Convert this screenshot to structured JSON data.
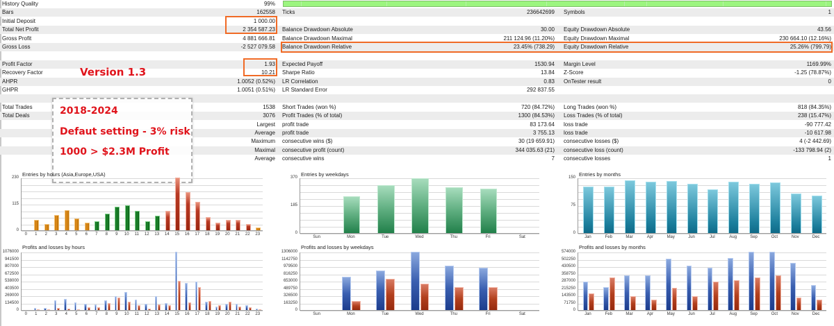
{
  "stats": {
    "col1": [
      {
        "label": "History Quality",
        "value": "99%"
      },
      {
        "label": "Bars",
        "value": "162558"
      },
      {
        "label": "Initial Deposit",
        "value": "1 000.00"
      },
      {
        "label": "Total Net Profit",
        "value": "2 354 587.23"
      },
      {
        "label": "Gross Profit",
        "value": "4 881 666.81"
      },
      {
        "label": "Gross Loss",
        "value": "-2 527 079.58"
      },
      {
        "label": "",
        "value": ""
      },
      {
        "label": "Profit Factor",
        "value": "1.93"
      },
      {
        "label": "Recovery Factor",
        "value": "10.21"
      },
      {
        "label": "AHPR",
        "value": "1.0052 (0.52%)"
      },
      {
        "label": "GHPR",
        "value": "1.0051 (0.51%)"
      },
      {
        "label": "",
        "value": ""
      },
      {
        "label": "Total Trades",
        "value": "1538"
      },
      {
        "label": "Total Deals",
        "value": "3076"
      },
      {
        "label": "",
        "value": "Largest"
      },
      {
        "label": "",
        "value": "Average"
      },
      {
        "label": "",
        "value": "Maximum"
      },
      {
        "label": "",
        "value": "Maximal"
      },
      {
        "label": "",
        "value": "Average"
      }
    ],
    "col2": [
      {
        "label": "",
        "value": ""
      },
      {
        "label": "Ticks",
        "value": "236642699"
      },
      {
        "label": "",
        "value": ""
      },
      {
        "label": "Balance Drawdown Absolute",
        "value": "30.00"
      },
      {
        "label": "Balance Drawdown Maximal",
        "value": "211 124.96 (11.20%)"
      },
      {
        "label": "Balance Drawdown Relative",
        "value": "23.45% (738.29)"
      },
      {
        "label": "",
        "value": ""
      },
      {
        "label": "Expected Payoff",
        "value": "1530.94"
      },
      {
        "label": "Sharpe Ratio",
        "value": "13.84"
      },
      {
        "label": "LR Correlation",
        "value": "0.83"
      },
      {
        "label": "LR Standard Error",
        "value": "292 837.55"
      },
      {
        "label": "",
        "value": ""
      },
      {
        "label": "Short Trades (won %)",
        "value": "720 (84.72%)"
      },
      {
        "label": "Profit Trades (% of total)",
        "value": "1300 (84.53%)"
      },
      {
        "label": "profit trade",
        "value": "83 173.64"
      },
      {
        "label": "profit trade",
        "value": "3 755.13"
      },
      {
        "label": "consecutive wins ($)",
        "value": "30 (19 659.91)"
      },
      {
        "label": "consecutive profit (count)",
        "value": "344 035.63 (21)"
      },
      {
        "label": "consecutive wins",
        "value": "7"
      }
    ],
    "col3": [
      {
        "label": "",
        "value": ""
      },
      {
        "label": "Symbols",
        "value": "1"
      },
      {
        "label": "",
        "value": ""
      },
      {
        "label": "Equity Drawdown Absolute",
        "value": "43.56"
      },
      {
        "label": "Equity Drawdown Maximal",
        "value": "230 664.10 (12.16%)"
      },
      {
        "label": "Equity Drawdown Relative",
        "value": "25.26% (799.79)"
      },
      {
        "label": "",
        "value": ""
      },
      {
        "label": "Margin Level",
        "value": "1169.99%"
      },
      {
        "label": "Z-Score",
        "value": "-1.25 (78.87%)"
      },
      {
        "label": "OnTester result",
        "value": "0"
      },
      {
        "label": "",
        "value": ""
      },
      {
        "label": "",
        "value": ""
      },
      {
        "label": "Long Trades (won %)",
        "value": "818 (84.35%)"
      },
      {
        "label": "Loss Trades (% of total)",
        "value": "238 (15.47%)"
      },
      {
        "label": "loss trade",
        "value": "-90 777.42"
      },
      {
        "label": "loss trade",
        "value": "-10 617.98"
      },
      {
        "label": "consecutive losses ($)",
        "value": "4 (-2 442.69)"
      },
      {
        "label": "consecutive loss (count)",
        "value": "-133 798.94 (2)"
      },
      {
        "label": "consecutive losses",
        "value": "1"
      }
    ]
  },
  "annotations": {
    "version": "Version 1.3",
    "period": "2018-2024",
    "setting": "Defaut setting - 3% risk",
    "result": "1000 > $2.3M Profit"
  },
  "colors": {
    "highlight": "#f06a25",
    "annotation_red": "#e0141c",
    "quality_bar": "#9cf57f",
    "profit_blue": "#3a5fb0",
    "loss_red": "#b2401e"
  },
  "chart_data": [
    {
      "id": "entries_hours",
      "type": "bar",
      "title": "Entries by hours (Asia,Europe,USA)",
      "categories": [
        "0",
        "1",
        "2",
        "3",
        "4",
        "5",
        "6",
        "7",
        "8",
        "9",
        "10",
        "11",
        "12",
        "13",
        "14",
        "15",
        "16",
        "17",
        "18",
        "19",
        "20",
        "21",
        "22",
        "23"
      ],
      "values": [
        0,
        45,
        28,
        68,
        88,
        52,
        34,
        40,
        72,
        102,
        108,
        84,
        40,
        64,
        86,
        230,
        166,
        123,
        58,
        34,
        46,
        44,
        26,
        12
      ],
      "session_colors": [
        "orange",
        "orange",
        "orange",
        "orange",
        "orange",
        "orange",
        "orange",
        "green",
        "green",
        "green",
        "green",
        "green",
        "green",
        "green",
        "red",
        "red",
        "red",
        "red",
        "red",
        "red",
        "red",
        "red",
        "red",
        "orange"
      ],
      "yticks": [
        "230",
        "115",
        "0"
      ],
      "ylim": [
        0,
        230
      ]
    },
    {
      "id": "entries_weekdays",
      "type": "bar",
      "title": "Entries by weekdays",
      "categories": [
        "Sun",
        "Mon",
        "Tue",
        "Wed",
        "Thu",
        "Fri",
        "Sat"
      ],
      "values": [
        0,
        246,
        318,
        366,
        305,
        298,
        0
      ],
      "yticks": [
        "370",
        "185",
        "0"
      ],
      "ylim": [
        0,
        370
      ]
    },
    {
      "id": "entries_months",
      "type": "bar",
      "title": "Entries by months",
      "categories": [
        "Jan",
        "Feb",
        "Mar",
        "Apr",
        "May",
        "Jun",
        "Jul",
        "Aug",
        "Sep",
        "Oct",
        "Nov",
        "Dec"
      ],
      "values": [
        125,
        126,
        143,
        138,
        140,
        133,
        119,
        139,
        134,
        136,
        107,
        102
      ],
      "yticks": [
        "150",
        "75",
        "0"
      ],
      "ylim": [
        0,
        150
      ]
    },
    {
      "id": "pl_hours",
      "type": "bar",
      "title": "Profits and losses by hours",
      "categories": [
        "0",
        "1",
        "2",
        "3",
        "4",
        "5",
        "6",
        "7",
        "8",
        "9",
        "10",
        "11",
        "12",
        "13",
        "14",
        "15",
        "16",
        "17",
        "18",
        "19",
        "20",
        "21",
        "22",
        "23"
      ],
      "series": [
        {
          "name": "Profits",
          "values": [
            0,
            45000,
            45000,
            180000,
            200000,
            135000,
            110000,
            105000,
            180000,
            255000,
            330000,
            190000,
            120000,
            250000,
            130000,
            1076000,
            500000,
            520000,
            160000,
            60000,
            110000,
            120000,
            90000,
            30000
          ]
        },
        {
          "name": "Losses",
          "values": [
            0,
            8000,
            8000,
            40000,
            20000,
            8000,
            50000,
            55000,
            130000,
            230000,
            155000,
            90000,
            30000,
            105000,
            85000,
            535000,
            145000,
            420000,
            165000,
            90000,
            155000,
            60000,
            50000,
            8000
          ]
        }
      ],
      "yticks": [
        "1076000",
        "941500",
        "807000",
        "672500",
        "538000",
        "403500",
        "269000",
        "134500",
        "0"
      ],
      "ylim": [
        0,
        1076000
      ]
    },
    {
      "id": "pl_weekdays",
      "type": "bar",
      "title": "Profits and losses by weekdays",
      "categories": [
        "Sun",
        "Mon",
        "Tue",
        "Wed",
        "Thu",
        "Fri",
        "Sat"
      ],
      "series": [
        {
          "name": "Profits",
          "values": [
            0,
            740000,
            890000,
            1306000,
            990000,
            950000,
            0
          ]
        },
        {
          "name": "Losses",
          "values": [
            0,
            210000,
            700000,
            590000,
            520000,
            510000,
            0
          ]
        }
      ],
      "yticks": [
        "1306000",
        "1142750",
        "979500",
        "816250",
        "653000",
        "489750",
        "326500",
        "163250",
        "0"
      ],
      "ylim": [
        0,
        1306000
      ]
    },
    {
      "id": "pl_months",
      "type": "bar",
      "title": "Profits and losses by months",
      "categories": [
        "Jan",
        "Feb",
        "Mar",
        "Apr",
        "May",
        "Jun",
        "Jul",
        "Aug",
        "Sep",
        "Oct",
        "Nov",
        "Dec"
      ],
      "series": [
        {
          "name": "Profits",
          "values": [
            280000,
            225000,
            345000,
            340000,
            505000,
            440000,
            420000,
            510000,
            574000,
            574000,
            465000,
            245000
          ]
        },
        {
          "name": "Losses",
          "values": [
            165000,
            320000,
            135000,
            105000,
            220000,
            140000,
            280000,
            295000,
            320000,
            345000,
            125000,
            100000
          ]
        }
      ],
      "yticks": [
        "574000",
        "502250",
        "430500",
        "358750",
        "287000",
        "215250",
        "143500",
        "71750",
        "0"
      ],
      "ylim": [
        0,
        574000
      ]
    }
  ]
}
